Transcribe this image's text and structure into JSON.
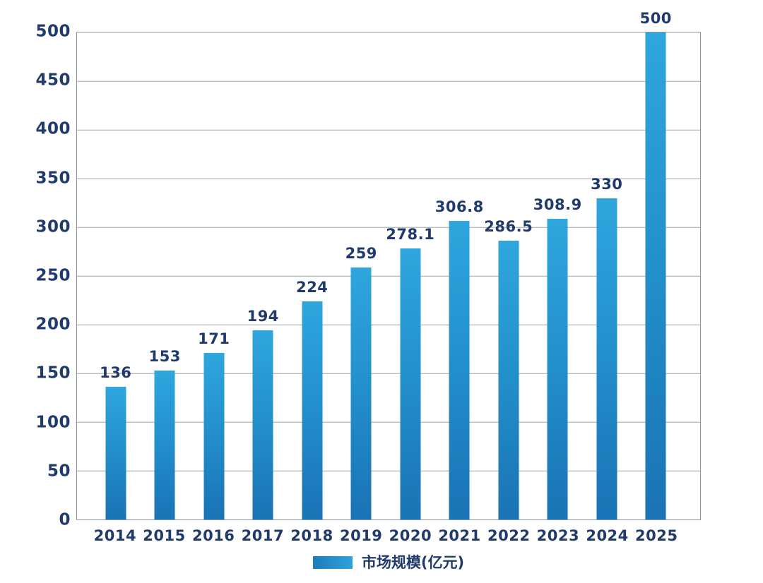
{
  "chart_data": {
    "type": "bar",
    "title": "",
    "categories": [
      "2014",
      "2015",
      "2016",
      "2017",
      "2018",
      "2019",
      "2020",
      "2021",
      "2022",
      "2023",
      "2024",
      "2025"
    ],
    "values": [
      136,
      153,
      171,
      194,
      224,
      259,
      278.1,
      306.8,
      286.5,
      308.9,
      330,
      500
    ],
    "value_labels": [
      "136",
      "153",
      "171",
      "194",
      "224",
      "259",
      "278.1",
      "306.8",
      "286.5",
      "308.9",
      "330",
      "500"
    ],
    "xlabel": "",
    "ylabel": "",
    "ylim": [
      0,
      500
    ],
    "yticks": [
      0,
      50,
      100,
      150,
      200,
      250,
      300,
      350,
      400,
      450,
      500
    ],
    "grid": true,
    "legend_position": "bottom-center",
    "legend": "市场规模(亿元)",
    "colors": {
      "bar_top": "#2fa6dd",
      "bar_bottom": "#1a73b4",
      "text": "#1f3a6b",
      "gridline": "#a0a4aa",
      "plot_border": "#8f939a",
      "background": "#ffffff"
    }
  }
}
